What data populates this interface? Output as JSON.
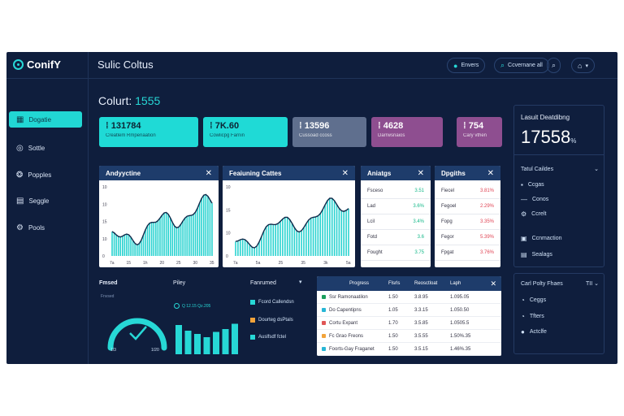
{
  "app": {
    "logo": "ConifY",
    "title": "Sulic Coltus"
  },
  "topbar": {
    "btn1": "Envers",
    "btn2": "Ccvernane all",
    "btn3_icon": "search-icon",
    "btn4_icon": "home-icon"
  },
  "sidebar": {
    "items": [
      {
        "label": "Dogatie",
        "icon": "grid-icon",
        "active": true
      },
      {
        "label": "Sottle",
        "icon": "settings-icon",
        "active": false
      },
      {
        "label": "Popples",
        "icon": "people-icon",
        "active": false
      },
      {
        "label": "Seggle",
        "icon": "chart-icon",
        "active": false
      },
      {
        "label": "Pools",
        "icon": "tool-icon",
        "active": false
      }
    ]
  },
  "heading": {
    "text": "Colurt: ",
    "accent": "1555"
  },
  "cards": [
    {
      "value": "131784",
      "sub": "Creatlem Rmpenaation",
      "color": "#1fdad6"
    },
    {
      "value": "7K.60",
      "sub": "Cowlicpg Farnin",
      "color": "#1fdad6"
    },
    {
      "value": "13596",
      "sub": "Cussoad ccoss",
      "color": "#5f6f8e"
    },
    {
      "value": "4628",
      "sub": "Darrwsnaios",
      "color": "#8e4e90"
    },
    {
      "value": "754",
      "sub": "Cary vthen",
      "color": "#8e4e90"
    }
  ],
  "panels": {
    "analytics": {
      "title": "Andyyctine",
      "ticks": [
        "10",
        "10",
        "15",
        "10",
        "0"
      ],
      "xticks": [
        "7a",
        "15",
        "1h",
        "20",
        "25",
        "30",
        "35"
      ]
    },
    "followers": {
      "title": "Feaiuning Cattes",
      "ticks": [
        "10",
        "15",
        "10",
        "0"
      ],
      "xticks": [
        "7a",
        "5a",
        "25",
        "35",
        "3k",
        "5a"
      ]
    },
    "activities": {
      "title": "Aniatgs",
      "rows": [
        {
          "label": "Fsceso",
          "value": "3.51"
        },
        {
          "label": "Lad",
          "value": "3.6%"
        },
        {
          "label": "Lcil",
          "value": "3.4%"
        },
        {
          "label": "Fotd",
          "value": "3.6"
        },
        {
          "label": "Fought",
          "value": "3.75"
        }
      ]
    },
    "weekly": {
      "title": "Dpgiths",
      "rows": [
        {
          "label": "Fiecel",
          "value": "3.81%"
        },
        {
          "label": "Fegoel",
          "value": "2.29%"
        },
        {
          "label": "Fopg",
          "value": "3.35%"
        },
        {
          "label": "Fegor",
          "value": "5.39%"
        },
        {
          "label": "Fpgat",
          "value": "3.76%"
        }
      ]
    }
  },
  "bottom": {
    "gauge_title": "Fmsed",
    "gauge_sub": "Fnvsed",
    "gauge_min": "1/3",
    "gauge_max": "1/20",
    "bars_title": "Piley",
    "bars_legend": "Q 12.15 Qz.205",
    "bars": [
      0.72,
      0.58,
      0.5,
      0.42,
      0.55,
      0.62,
      0.75
    ],
    "legend_title": "Fanrumed",
    "legend_items": [
      {
        "label": "Fcord Callendsn",
        "color": "#27d8d6"
      },
      {
        "label": "Dourteg dsPtals",
        "color": "#f2a33a"
      },
      {
        "label": "Auslfsdf fctel",
        "color": "#27d8d6"
      }
    ]
  },
  "table": {
    "headers": [
      "Progress",
      "Flsrls",
      "Reosctloat",
      "Laph"
    ],
    "rows": [
      {
        "name": "Ssr Ramonaatilon",
        "a": "1.50",
        "b": "3.8.95",
        "c": "1.095.05",
        "color": "#1a9e5c"
      },
      {
        "name": "Do Capentipns",
        "a": "1.05",
        "b": "3.3.15",
        "c": "1.050.50",
        "color": "#27b6d6"
      },
      {
        "name": "Cortu Expant",
        "a": "1.70",
        "b": "3.5.85",
        "c": "1.0505.5",
        "color": "#e05555"
      },
      {
        "name": "Fc Grao Freons",
        "a": "1.50",
        "b": "3.5.55",
        "c": "1.50%.35",
        "color": "#f2a33a"
      },
      {
        "name": "Foorts-Gay Fraganet",
        "a": "1.50",
        "b": "3.5.15",
        "c": "1.46%.35",
        "color": "#27b6d6"
      }
    ]
  },
  "right": {
    "label": "Lasuit Deatdibng",
    "value": "17558",
    "unit": "%",
    "section_title": "Tatul Caildes",
    "items": [
      {
        "label": "Ccgas",
        "icon": "grid-icon"
      },
      {
        "label": "Conos",
        "icon": "minus-icon"
      },
      {
        "label": "Ccrelt",
        "icon": "settings-icon"
      },
      {
        "label": "Ccnmaction",
        "icon": "chart-icon"
      },
      {
        "label": "Sealags",
        "icon": "chart-icon"
      }
    ]
  },
  "right2": {
    "title": "Carl Polty Fhaes",
    "code": "TII",
    "items": [
      {
        "label": "Ceggs",
        "icon": "circle-icon"
      },
      {
        "label": "Tfters",
        "icon": "circle-icon"
      },
      {
        "label": "Actclfe",
        "icon": "circle-icon"
      }
    ]
  }
}
